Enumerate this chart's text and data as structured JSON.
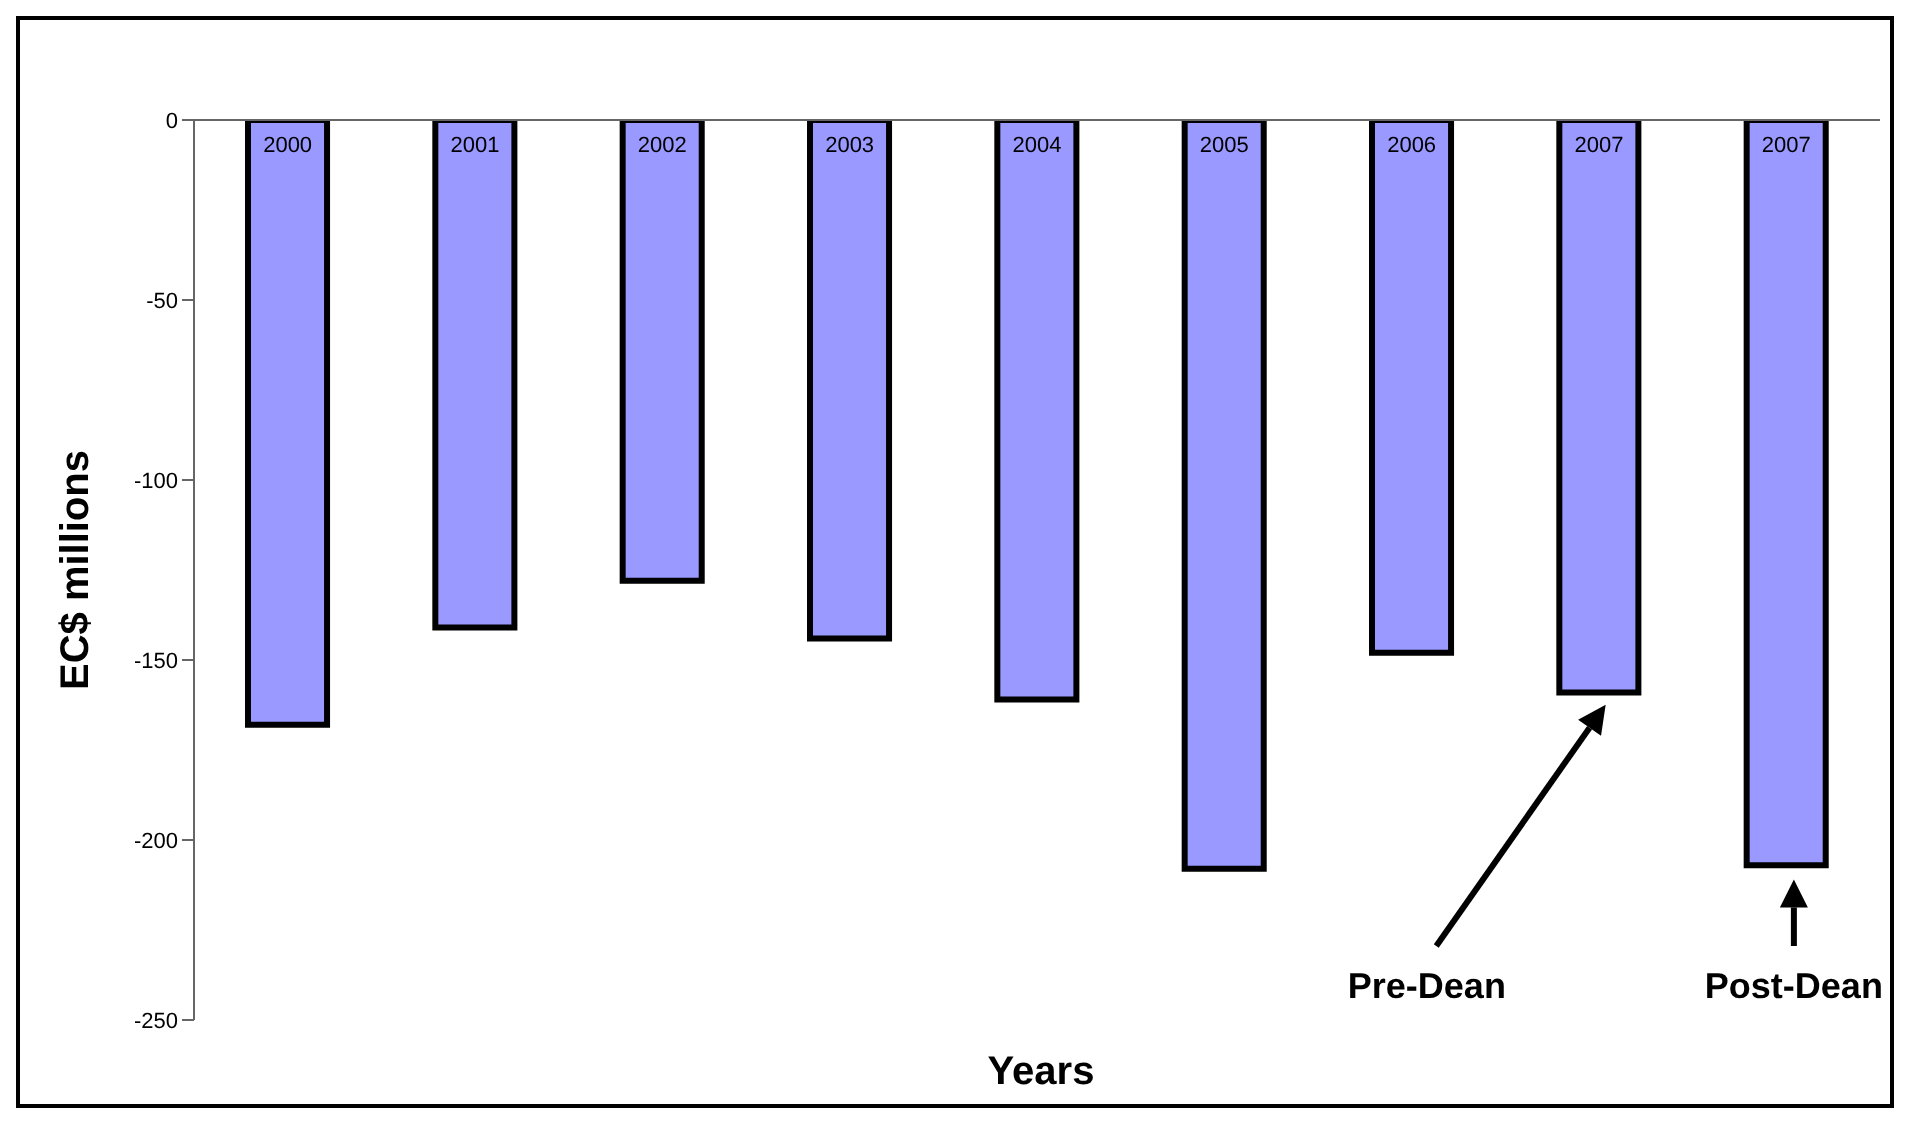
{
  "chart_data": {
    "type": "bar",
    "xlabel": "Years",
    "ylabel": "EC$ millions",
    "categories": [
      "2000",
      "2001",
      "2002",
      "2003",
      "2004",
      "2005",
      "2006",
      "2007",
      "2007"
    ],
    "values": [
      -168,
      -141,
      -128,
      -144,
      -161,
      -208,
      -148,
      -159,
      -207
    ],
    "color": "#9999ff",
    "ylim": [
      -250,
      0
    ],
    "yticks": [
      -250,
      -200,
      -150,
      -100,
      -50,
      0
    ],
    "grid": false,
    "legend": false,
    "annotations": [
      "Pre-Dean",
      "Post-Dean"
    ]
  }
}
